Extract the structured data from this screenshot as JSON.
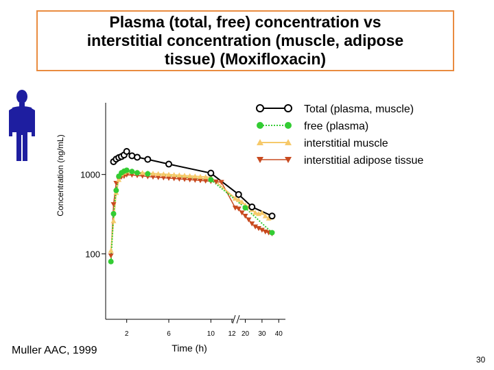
{
  "slide": {
    "title": "Plasma (total, free) concentration vs\ninterstitial concentration (muscle, adipose\ntissue) (Moxifloxacin)",
    "citation": "Muller AAC, 1999",
    "page_number": "30"
  },
  "colors": {
    "title_border": "#e98b3f",
    "total": "#000000",
    "free": "#33cc33",
    "muscle": "#f6c96a",
    "adipose": "#c84a1f",
    "person": "#1e1ea0"
  },
  "chart_data": {
    "type": "line",
    "title": "",
    "xlabel": "Time (h)",
    "ylabel": "Concentration (ng/mL)",
    "y_scale": "log",
    "y_ticks": [
      1000,
      100
    ],
    "y_tick_labels": [
      "1000",
      "100"
    ],
    "xlim": [
      0,
      44
    ],
    "ylim": [
      15,
      8000
    ],
    "x_break_at": 12,
    "x_ticks": [
      {
        "label": "2",
        "value": 2
      },
      {
        "label": "6",
        "value": 6
      },
      {
        "label": "10",
        "value": 10
      },
      {
        "label": "12",
        "value": 12
      },
      {
        "label": "20",
        "value": 20
      },
      {
        "label": "30",
        "value": 30
      },
      {
        "label": "40",
        "value": 40
      }
    ],
    "legend_position": "top-right",
    "series": [
      {
        "name": "Total (plasma, muscle)",
        "marker": "circle-open",
        "line": "solid",
        "x": [
          0.75,
          1.0,
          1.25,
          1.5,
          1.75,
          2.0,
          2.5,
          3.0,
          4.0,
          6.0,
          10.0,
          16.0,
          24.0,
          36.0
        ],
        "y": [
          1450,
          1560,
          1630,
          1680,
          1760,
          1950,
          1720,
          1650,
          1550,
          1350,
          1040,
          560,
          390,
          300
        ]
      },
      {
        "name": "free (plasma)",
        "marker": "circle-filled",
        "line": "dotted",
        "x": [
          0.5,
          0.75,
          1.0,
          1.25,
          1.5,
          1.75,
          2.0,
          2.5,
          3.0,
          4.0,
          10.0,
          20.0,
          36.0
        ],
        "y": [
          80,
          320,
          630,
          950,
          1050,
          1100,
          1130,
          1090,
          1050,
          1020,
          860,
          380,
          185
        ]
      },
      {
        "name": "interstitial muscle",
        "marker": "triangle-up",
        "line": "solid",
        "x": [
          0.5,
          0.75,
          1.0,
          1.25,
          1.5,
          1.75,
          2.0,
          2.5,
          3.0,
          3.5,
          4.0,
          4.5,
          5.0,
          5.5,
          6.0,
          6.5,
          7.0,
          7.5,
          8.0,
          8.5,
          9.0,
          9.5,
          10.0,
          14.0,
          16.0,
          18.0,
          20.0,
          22.0,
          24.0,
          26.0,
          28.0,
          30.0,
          32.0,
          34.0,
          36.0
        ],
        "y": [
          110,
          260,
          590,
          860,
          1010,
          1060,
          1100,
          1080,
          1070,
          1050,
          1040,
          1030,
          1020,
          1010,
          1000,
          990,
          980,
          970,
          960,
          950,
          940,
          930,
          920,
          500,
          480,
          450,
          410,
          390,
          360,
          330,
          320,
          330,
          300,
          280,
          290
        ]
      },
      {
        "name": "interstitial adipose tissue",
        "marker": "triangle-down",
        "line": "solid",
        "x": [
          0.5,
          0.75,
          1.0,
          1.25,
          1.5,
          1.75,
          2.0,
          2.5,
          3.0,
          3.5,
          4.0,
          4.5,
          5.0,
          5.5,
          6.0,
          6.5,
          7.0,
          7.5,
          8.0,
          8.5,
          9.0,
          9.5,
          10.0,
          10.5,
          11.0,
          14.0,
          16.0,
          18.0,
          20.0,
          22.0,
          24.0,
          26.0,
          28.0,
          30.0,
          32.0,
          34.0,
          36.0
        ],
        "y": [
          95,
          420,
          780,
          870,
          930,
          950,
          990,
          985,
          970,
          960,
          940,
          930,
          920,
          910,
          900,
          890,
          880,
          870,
          860,
          850,
          840,
          830,
          820,
          810,
          800,
          380,
          370,
          330,
          300,
          270,
          240,
          220,
          210,
          200,
          190,
          185,
          180
        ]
      }
    ]
  }
}
